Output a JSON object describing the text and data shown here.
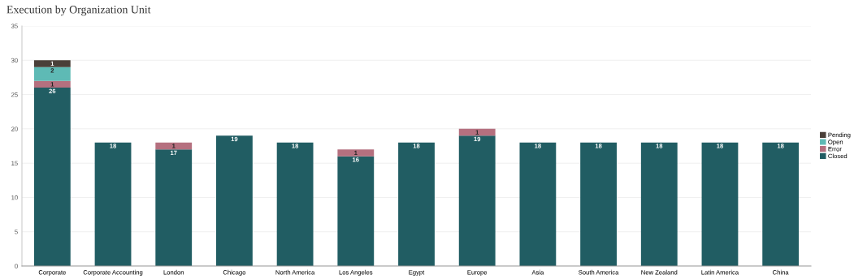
{
  "chart_data": {
    "type": "bar",
    "title": "Execution by Organization Unit",
    "stacked": true,
    "data_labels": true,
    "grid": "y",
    "legend": "right",
    "categories": [
      "Corporate",
      "Corporate Accounting",
      "London",
      "Chicago",
      "North America",
      "Los Angeles",
      "Egypt",
      "Europe",
      "Asia",
      "South America",
      "New Zealand",
      "Latin America",
      "China"
    ],
    "ylim": [
      0,
      35
    ],
    "yticks": [
      0,
      5,
      10,
      15,
      20,
      25,
      30,
      35
    ],
    "series": [
      {
        "name": "Closed",
        "color": "#215d63",
        "values": [
          26,
          18,
          17,
          19,
          18,
          16,
          18,
          19,
          18,
          18,
          18,
          18,
          18
        ]
      },
      {
        "name": "Error",
        "color": "#b5707f",
        "values": [
          1,
          null,
          1,
          null,
          null,
          1,
          null,
          1,
          null,
          null,
          null,
          null,
          null
        ]
      },
      {
        "name": "Open",
        "color": "#5ebab5",
        "values": [
          2,
          null,
          null,
          null,
          null,
          null,
          null,
          null,
          null,
          null,
          null,
          null,
          null
        ]
      },
      {
        "name": "Pending",
        "color": "#4a3f39",
        "values": [
          1,
          null,
          null,
          null,
          null,
          null,
          null,
          null,
          null,
          null,
          null,
          null,
          null
        ]
      }
    ]
  }
}
